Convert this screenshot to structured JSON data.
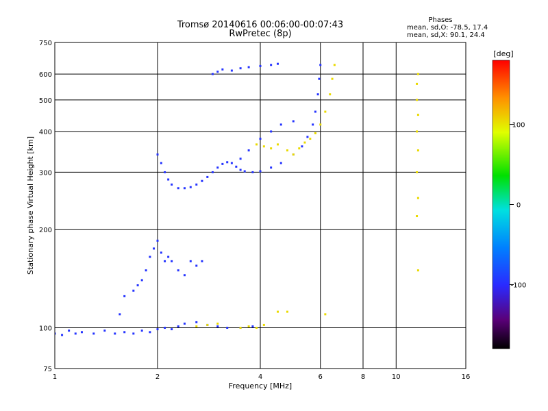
{
  "chart_data": {
    "type": "scatter",
    "title": "Tromsø 20140616 00:06:00-00:07:43",
    "subtitle": "RwPretec (8p)",
    "xlabel": "Frequency [MHz]",
    "ylabel": "Stationary phase Virtual Height [km]",
    "x_scale": "log",
    "y_scale": "log",
    "xlim": [
      1,
      16
    ],
    "ylim": [
      75,
      750
    ],
    "x_ticks": [
      1,
      2,
      4,
      6,
      8,
      10,
      16
    ],
    "x_tick_labels": [
      "1",
      "2",
      "4",
      "6",
      "8",
      "10",
      "16"
    ],
    "y_ticks": [
      75,
      100,
      200,
      300,
      400,
      500,
      600,
      750
    ],
    "y_tick_labels": [
      "75",
      "100",
      "200",
      "300",
      "400",
      "500",
      "600",
      "750"
    ],
    "grid": true,
    "phases_box": {
      "header": "Phases",
      "line_o": "mean, sd,O: -78.5, 17.4",
      "line_x": "mean, sd,X:  90.1, 24.4"
    },
    "colorbar": {
      "label": "[deg]",
      "range": [
        -180,
        180
      ],
      "ticks": [
        100,
        0,
        -100
      ],
      "tick_labels": [
        "100",
        "0",
        "-100"
      ]
    },
    "series": [
      {
        "values": [
          [
            1.0,
            96,
            -95
          ],
          [
            1.05,
            95,
            -95
          ],
          [
            1.1,
            98,
            -95
          ],
          [
            1.15,
            96,
            -95
          ],
          [
            1.2,
            97,
            -95
          ],
          [
            1.3,
            96,
            -95
          ],
          [
            1.4,
            98,
            -95
          ],
          [
            1.5,
            96,
            -95
          ],
          [
            1.6,
            97,
            -95
          ],
          [
            1.7,
            96,
            -95
          ],
          [
            1.8,
            98,
            -95
          ],
          [
            1.9,
            97,
            -95
          ],
          [
            2.0,
            99,
            -95
          ],
          [
            2.1,
            100,
            -95
          ],
          [
            2.2,
            99,
            -95
          ],
          [
            2.3,
            101,
            -95
          ],
          [
            2.4,
            103,
            -95
          ],
          [
            2.6,
            104,
            -95
          ],
          [
            2.8,
            102,
            -95
          ],
          [
            3.0,
            101,
            -95
          ],
          [
            3.2,
            100,
            -95
          ],
          [
            3.5,
            100,
            -95
          ],
          [
            3.8,
            101,
            -95
          ]
        ]
      },
      {
        "values": [
          [
            1.55,
            110,
            -95
          ],
          [
            1.6,
            125,
            -95
          ],
          [
            1.7,
            130,
            -95
          ],
          [
            1.75,
            135,
            -95
          ],
          [
            1.8,
            140,
            -95
          ],
          [
            1.85,
            150,
            -95
          ],
          [
            1.9,
            165,
            -95
          ],
          [
            1.95,
            175,
            -95
          ],
          [
            2.0,
            185,
            -95
          ],
          [
            2.05,
            170,
            -95
          ],
          [
            2.1,
            160,
            -95
          ],
          [
            2.15,
            165,
            -95
          ],
          [
            2.2,
            160,
            -95
          ],
          [
            2.3,
            150,
            -95
          ],
          [
            2.4,
            145,
            -95
          ],
          [
            2.5,
            160,
            -95
          ],
          [
            2.6,
            155,
            -95
          ],
          [
            2.7,
            160,
            -95
          ]
        ]
      },
      {
        "values": [
          [
            2.0,
            340,
            -95
          ],
          [
            2.05,
            320,
            -95
          ],
          [
            2.1,
            300,
            -95
          ],
          [
            2.15,
            285,
            -95
          ],
          [
            2.2,
            275,
            -95
          ],
          [
            2.3,
            268,
            -95
          ],
          [
            2.4,
            268,
            -95
          ],
          [
            2.5,
            270,
            -95
          ],
          [
            2.6,
            275,
            -95
          ],
          [
            2.7,
            282,
            -95
          ],
          [
            2.8,
            290,
            -95
          ],
          [
            2.9,
            300,
            -95
          ],
          [
            3.0,
            310,
            -95
          ],
          [
            3.1,
            318,
            -95
          ],
          [
            3.2,
            322,
            -95
          ],
          [
            3.3,
            320,
            -95
          ],
          [
            3.4,
            312,
            -95
          ],
          [
            3.5,
            305,
            -95
          ],
          [
            3.6,
            302,
            -95
          ],
          [
            3.8,
            300,
            -95
          ],
          [
            4.0,
            302,
            -95
          ],
          [
            4.3,
            310,
            -95
          ],
          [
            4.6,
            320,
            -95
          ],
          [
            5.0,
            340,
            -95
          ],
          [
            5.3,
            360,
            -95
          ],
          [
            5.5,
            385,
            -95
          ],
          [
            5.7,
            420,
            -95
          ],
          [
            5.8,
            460,
            -95
          ],
          [
            5.9,
            520,
            -95
          ],
          [
            5.95,
            580,
            -95
          ],
          [
            6.0,
            640,
            -95
          ]
        ]
      },
      {
        "values": [
          [
            2.9,
            600,
            -95
          ],
          [
            3.0,
            610,
            -95
          ],
          [
            3.1,
            620,
            -95
          ],
          [
            3.3,
            615,
            -95
          ],
          [
            3.5,
            625,
            -95
          ],
          [
            3.7,
            630,
            -95
          ],
          [
            4.0,
            635,
            -95
          ],
          [
            4.3,
            640,
            -95
          ],
          [
            4.5,
            645,
            -95
          ]
        ]
      },
      {
        "values": [
          [
            3.5,
            330,
            -95
          ],
          [
            3.7,
            350,
            -95
          ],
          [
            4.0,
            380,
            -95
          ],
          [
            4.3,
            400,
            -95
          ],
          [
            4.6,
            420,
            -95
          ],
          [
            5.0,
            430,
            -95
          ]
        ]
      },
      {
        "values": [
          [
            3.9,
            365,
            105
          ],
          [
            4.1,
            360,
            105
          ],
          [
            4.3,
            355,
            105
          ],
          [
            4.5,
            365,
            105
          ],
          [
            4.8,
            350,
            105
          ],
          [
            5.0,
            340,
            105
          ],
          [
            5.2,
            355,
            105
          ],
          [
            5.4,
            370,
            105
          ],
          [
            5.6,
            380,
            105
          ],
          [
            5.8,
            395,
            105
          ],
          [
            6.0,
            420,
            105
          ],
          [
            6.2,
            460,
            105
          ],
          [
            6.4,
            520,
            105
          ],
          [
            6.5,
            580,
            105
          ],
          [
            6.6,
            640,
            105
          ]
        ]
      },
      {
        "values": [
          [
            3.5,
            100,
            105
          ],
          [
            3.7,
            101,
            105
          ],
          [
            3.9,
            100,
            105
          ],
          [
            4.1,
            102,
            105
          ],
          [
            2.6,
            101,
            105
          ],
          [
            2.8,
            102,
            105
          ],
          [
            3.0,
            103,
            105
          ],
          [
            4.5,
            112,
            105
          ],
          [
            4.8,
            112,
            105
          ],
          [
            6.2,
            110,
            105
          ]
        ]
      },
      {
        "values": [
          [
            11.5,
            560,
            105
          ],
          [
            11.6,
            600,
            105
          ],
          [
            11.5,
            500,
            105
          ],
          [
            11.6,
            450,
            105
          ],
          [
            11.5,
            400,
            105
          ],
          [
            11.6,
            350,
            105
          ],
          [
            11.5,
            300,
            105
          ],
          [
            11.6,
            250,
            105
          ],
          [
            11.5,
            220,
            105
          ],
          [
            11.6,
            150,
            105
          ]
        ]
      }
    ]
  }
}
